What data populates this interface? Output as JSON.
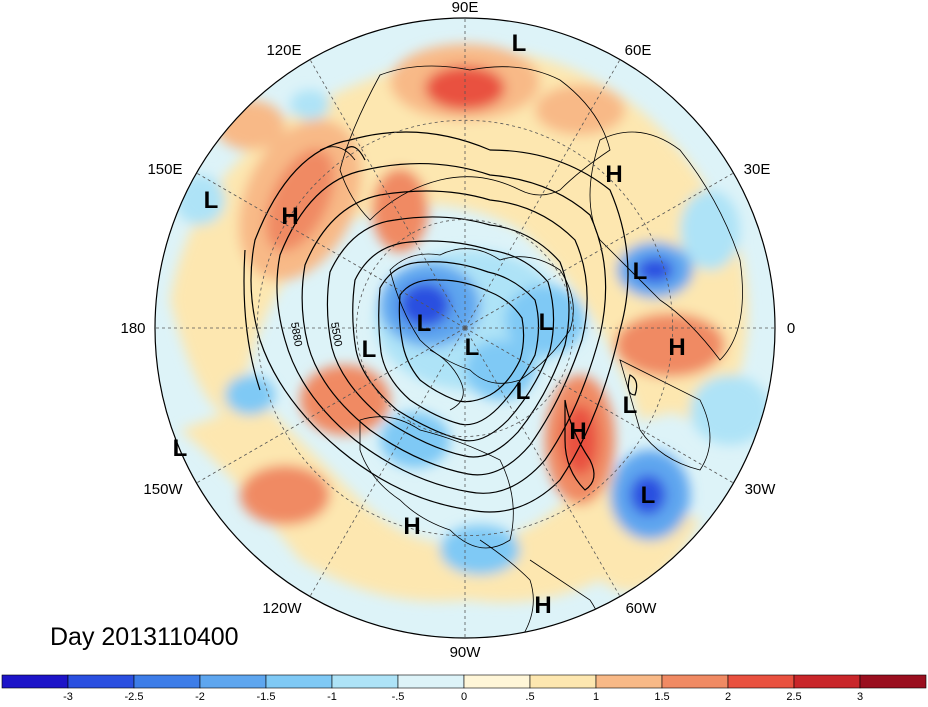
{
  "title": "Day 2013110400",
  "longitude_labels": [
    "90E",
    "60E",
    "30E",
    "0",
    "30W",
    "60W",
    "90W",
    "120W",
    "150W",
    "180",
    "150E",
    "120E"
  ],
  "contour_labels": [
    "5880",
    "5500"
  ],
  "pressure_centers": [
    {
      "type": "L",
      "lon": 95
    },
    {
      "type": "H",
      "lon": 50
    },
    {
      "type": "L",
      "lon": 15
    },
    {
      "type": "H",
      "lon": -5
    },
    {
      "type": "L",
      "lon": -35
    },
    {
      "type": "H",
      "lon": -45
    },
    {
      "type": "L",
      "lon": -55
    },
    {
      "type": "H",
      "lon": -70
    },
    {
      "type": "H",
      "lon": -105
    },
    {
      "type": "L",
      "lon": -160
    },
    {
      "type": "L",
      "lon": 150
    },
    {
      "type": "H",
      "lon": 135
    },
    {
      "type": "L",
      "lon": 165
    },
    {
      "type": "L",
      "lon": -170
    },
    {
      "type": "L",
      "lon": -110
    },
    {
      "type": "L",
      "lon": -20
    },
    {
      "type": "L",
      "lon": 30
    }
  ],
  "colorbar": {
    "ticks": [
      "-3",
      "-2.5",
      "-2",
      "-1.5",
      "-1",
      "-.5",
      "0",
      ".5",
      "1",
      "1.5",
      "2",
      "2.5",
      "3"
    ],
    "colors": [
      "#1d14c8",
      "#2a4fe0",
      "#3d7de8",
      "#5ea6ef",
      "#7fc9f5",
      "#aee3f7",
      "#ddf3f8",
      "#fff6d8",
      "#fde7b0",
      "#f8b987",
      "#f08a63",
      "#e9513f",
      "#c9262a",
      "#9a0f1f"
    ]
  },
  "colors": {
    "ocean_base": "#ddf3f8",
    "warm_light": "#fde7b0",
    "warm_mid": "#f8b987",
    "warm_strong": "#f08a63",
    "cold_light": "#aee3f7",
    "cold_mid": "#5ea6ef",
    "cold_strong": "#2a4fe0"
  }
}
